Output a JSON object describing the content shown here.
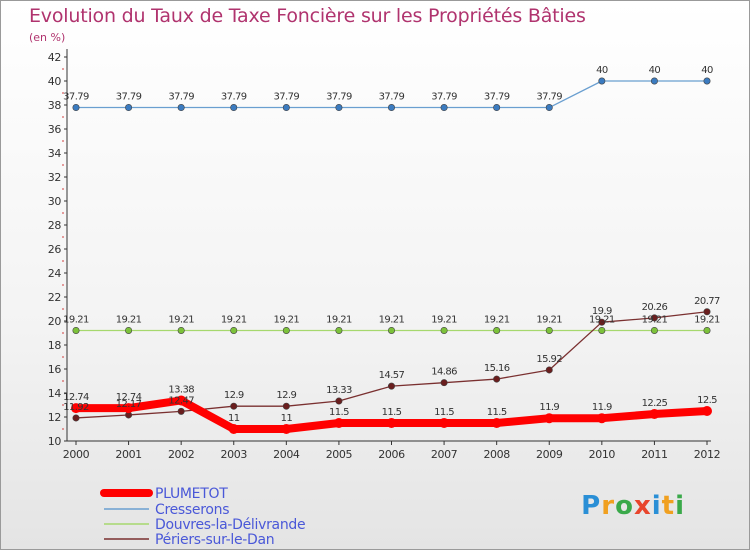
{
  "title": "Evolution du Taux de Taxe Foncière sur les Propriétés Bâties",
  "unit_label": "(en %)",
  "brand": {
    "letters": [
      "P",
      "r",
      "o",
      "x",
      "i",
      "t",
      "i"
    ],
    "colors": [
      "#2a8fd6",
      "#f0a020",
      "#3aa94a",
      "#e8452c",
      "#2a8fd6",
      "#f0a020",
      "#3aa94a"
    ]
  },
  "chart_data": {
    "type": "line",
    "title": "Evolution du Taux de Taxe Foncière sur les Propriétés Bâties",
    "ylabel": "(en %)",
    "xlabel": "",
    "x": [
      "2000",
      "2001",
      "2002",
      "2003",
      "2004",
      "2005",
      "2006",
      "2007",
      "2008",
      "2009",
      "2010",
      "2011",
      "2012"
    ],
    "ylim": [
      10,
      42
    ],
    "yticks": [
      10,
      12,
      14,
      16,
      18,
      20,
      22,
      24,
      26,
      28,
      30,
      32,
      34,
      36,
      38,
      40,
      42
    ],
    "grid": false,
    "legend_position": "bottom-left",
    "series": [
      {
        "name": "PLUMETOT",
        "color": "#ff0000",
        "point_color": "#ff0000",
        "values": [
          12.74,
          12.74,
          13.38,
          11,
          11,
          11.5,
          11.5,
          11.5,
          11.5,
          11.9,
          11.9,
          12.25,
          12.5
        ],
        "labels": [
          "12.74",
          "12.74",
          "13.38",
          "11",
          "11",
          "11.5",
          "11.5",
          "11.5",
          "11.5",
          "11.9",
          "11.9",
          "12.25",
          "12.5"
        ]
      },
      {
        "name": "Cresserons",
        "color": "#6a9fd0",
        "point_color": "#3b7bc0",
        "values": [
          37.79,
          37.79,
          37.79,
          37.79,
          37.79,
          37.79,
          37.79,
          37.79,
          37.79,
          37.79,
          40,
          40,
          40
        ],
        "labels": [
          "37.79",
          "37.79",
          "37.79",
          "37.79",
          "37.79",
          "37.79",
          "37.79",
          "37.79",
          "37.79",
          "37.79",
          "40",
          "40",
          "40"
        ]
      },
      {
        "name": "Douvres-la-Délivrande",
        "color": "#a6d86e",
        "point_color": "#7cc23a",
        "values": [
          19.21,
          19.21,
          19.21,
          19.21,
          19.21,
          19.21,
          19.21,
          19.21,
          19.21,
          19.21,
          19.21,
          19.21,
          19.21
        ],
        "labels": [
          "19.21",
          "19.21",
          "19.21",
          "19.21",
          "19.21",
          "19.21",
          "19.21",
          "19.21",
          "19.21",
          "19.21",
          "19.21",
          "19.21",
          "19.21"
        ]
      },
      {
        "name": "Périers-sur-le-Dan",
        "color": "#7a3030",
        "point_color": "#6a1e1e",
        "values": [
          11.92,
          12.17,
          12.47,
          12.9,
          12.9,
          13.33,
          14.57,
          14.86,
          15.16,
          15.92,
          19.9,
          20.26,
          20.77
        ],
        "labels": [
          "11.92",
          "12.17",
          "12.47",
          "12.9",
          "12.9",
          "13.33",
          "14.57",
          "14.86",
          "15.16",
          "15.92",
          "19.9",
          "20.26",
          "20.77"
        ]
      }
    ]
  }
}
